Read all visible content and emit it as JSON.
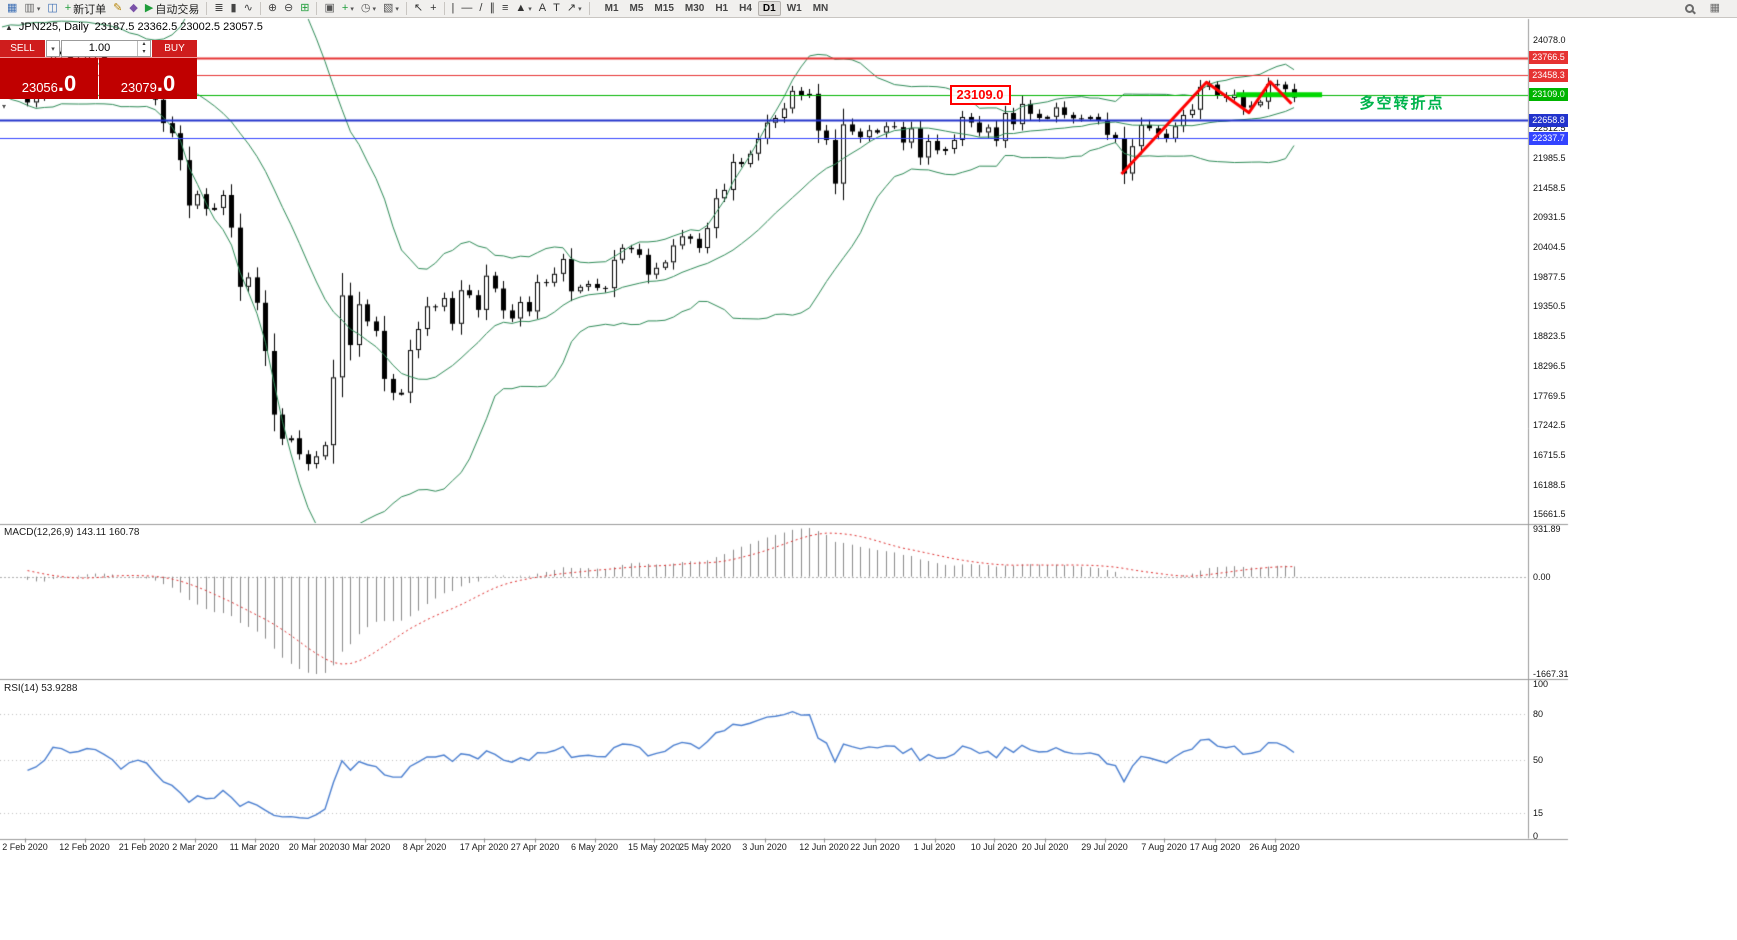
{
  "colors": {
    "toolbar_bg": "#f1f0ee",
    "bull": "#ffffff",
    "bear": "#000000",
    "candle_outline": "#000000",
    "bollinger": "#2E8B57",
    "macd_histogram": "#8c8c8c",
    "macd_signal": "#e03030",
    "rsi_line": "#4b7fd0",
    "zigzag": "#ff0000",
    "level_segment": "#00d800",
    "separator": "#9a9a9a"
  },
  "toolbar": {
    "items": [
      {
        "name": "new-chart-icon",
        "glyph": "▦",
        "color": "#3c6eb4"
      },
      {
        "name": "profiles-icon",
        "glyph": "▥",
        "color": "#6b6b6b",
        "dropdown": true
      },
      {
        "name": "chart-windows-icon",
        "glyph": "◫",
        "color": "#3c6eb4"
      },
      {
        "name": "new-order-button",
        "glyph": "+",
        "color": "#1f9d3a",
        "label": "新订单"
      },
      {
        "name": "metaeditor-icon",
        "glyph": "✎",
        "color": "#b8860b"
      },
      {
        "name": "script-icon",
        "glyph": "◆",
        "color": "#7a52a8"
      },
      {
        "name": "autotrading-button",
        "glyph": "▶",
        "color": "#1f9d3a",
        "label": "自动交易"
      },
      {
        "sep": true
      },
      {
        "name": "bar-chart-mode-icon",
        "glyph": "≣",
        "color": "#444444"
      },
      {
        "name": "candlestick-mode-icon",
        "glyph": "▮",
        "color": "#444444"
      },
      {
        "name": "line-chart-mode-icon",
        "glyph": "∿",
        "color": "#444444"
      },
      {
        "sep": true
      },
      {
        "name": "zoom-in-icon",
        "glyph": "⊕",
        "color": "#444444"
      },
      {
        "name": "zoom-out-icon",
        "glyph": "⊖",
        "color": "#444444"
      },
      {
        "name": "grid-icon",
        "glyph": "⊞",
        "color": "#1f9d3a"
      },
      {
        "sep": true
      },
      {
        "name": "tile-windows-icon",
        "glyph": "▣",
        "color": "#555555"
      },
      {
        "name": "indicators-icon",
        "glyph": "+",
        "color": "#1f9d3a",
        "dropdown": true
      },
      {
        "name": "periods-icon",
        "glyph": "◷",
        "color": "#555555",
        "dropdown": true
      },
      {
        "name": "templates-icon",
        "glyph": "▧",
        "color": "#555555",
        "dropdown": true
      },
      {
        "sep": true
      },
      {
        "name": "cursor-icon",
        "glyph": "↖",
        "color": "#333333"
      },
      {
        "name": "crosshair-icon",
        "glyph": "+",
        "color": "#333333"
      },
      {
        "sep": true
      },
      {
        "name": "vertical-line-icon",
        "glyph": "|",
        "color": "#333333"
      },
      {
        "name": "horizontal-line-icon",
        "glyph": "—",
        "color": "#333333"
      },
      {
        "name": "trendline-icon",
        "glyph": "/",
        "color": "#333333"
      },
      {
        "name": "channel-icon",
        "glyph": "∥",
        "color": "#333333"
      },
      {
        "name": "fibonacci-icon",
        "glyph": "≡",
        "color": "#333333"
      },
      {
        "name": "shapes-icon",
        "glyph": "▲",
        "color": "#333333",
        "dropdown": true
      },
      {
        "name": "text-icon",
        "glyph": "A",
        "color": "#333333"
      },
      {
        "name": "text-label-icon",
        "glyph": "T",
        "color": "#333333"
      },
      {
        "name": "arrow-tools-icon",
        "glyph": "↗",
        "color": "#333333",
        "dropdown": true
      },
      {
        "sep": true
      }
    ],
    "right_items": [
      {
        "name": "search-icon",
        "shape": "mag"
      },
      {
        "name": "panels-icon",
        "glyph": "▦",
        "color": "#6b6b6b"
      }
    ],
    "timeframes": [
      "M1",
      "M5",
      "M15",
      "M30",
      "H1",
      "H4",
      "D1",
      "W1",
      "MN"
    ],
    "active_timeframe": "D1"
  },
  "chart_header": {
    "marker": "▲",
    "symbol_title": "JPN225, Daily",
    "ohlc_text": "23187.5 23362.5 23002.5 23057.5"
  },
  "order_panel": {
    "sell_label": "SELL",
    "buy_label": "BUY",
    "volume": "1.00",
    "dropdown_glyph": "▾",
    "spin_up_glyph": "▴",
    "spin_down_glyph": "▾",
    "collapse_glyph": "▾",
    "sell_price_main": "23056",
    "sell_price_frac": ".0",
    "buy_price_main": "23079",
    "buy_price_frac": ".0"
  },
  "price_axis": {
    "plain_labels": [
      "24078.0",
      "22512.5",
      "21985.5",
      "21458.5",
      "20931.5",
      "20404.5",
      "19877.5",
      "19350.5",
      "18823.5",
      "18296.5",
      "17769.5",
      "17242.5",
      "16715.5",
      "16188.5",
      "15661.5"
    ],
    "tags": [
      {
        "text": "23766.5",
        "color": "#e63232"
      },
      {
        "text": "23458.3",
        "color": "#e63232"
      },
      {
        "text": "23109.0",
        "color": "#00b400"
      },
      {
        "text": "22658.8",
        "color": "#2233cc"
      },
      {
        "text": "22337.7",
        "color": "#3344ff"
      }
    ]
  },
  "hlines": [
    {
      "price": 23766.5,
      "color": "#e63232",
      "width": 2
    },
    {
      "price": 23458.3,
      "color": "#e63232",
      "width": 1
    },
    {
      "price": 23109.0,
      "color": "#00b400",
      "width": 1
    },
    {
      "price": 22658.8,
      "color": "#2233cc",
      "width": 2
    },
    {
      "price": 22337.7,
      "color": "#3344ff",
      "width": 1
    }
  ],
  "annotations": {
    "price_box": {
      "text": "23109.0",
      "bar": 109,
      "price": 23109.0
    },
    "note_cn": {
      "text": "多空转折点",
      "bar": 157,
      "price": 23000
    },
    "zigzag": {
      "bars": [
        129,
        139,
        144,
        146.5,
        149
      ],
      "prices": [
        21700,
        23330,
        22790,
        23340,
        22950
      ]
    },
    "level_segment": {
      "price": 23109.0,
      "bar_from": 142.5,
      "bar_to": 152.6
    }
  },
  "indicators": {
    "macd": {
      "label": "MACD(12,26,9) 143.11 160.78",
      "fast": 12,
      "slow": 26,
      "signal": 9,
      "current_macd": 143.11,
      "current_signal": 160.78,
      "axis_labels": [
        "931.89",
        "0.00",
        "-1667.31"
      ]
    },
    "rsi": {
      "label": "RSI(14) 53.9288",
      "period": 14,
      "current": 53.9288,
      "axis_labels": [
        "100",
        "80",
        "50",
        "15",
        "0"
      ],
      "levels": [
        80,
        50,
        15
      ]
    }
  },
  "x_axis": {
    "labels": [
      "2 Feb 2020",
      "12 Feb 2020",
      "21 Feb 2020",
      "2 Mar 2020",
      "11 Mar 2020",
      "20 Mar 2020",
      "30 Mar 2020",
      "8 Apr 2020",
      "17 Apr 2020",
      "27 Apr 2020",
      "6 May 2020",
      "15 May 2020",
      "25 May 2020",
      "3 Jun 2020",
      "12 Jun 2020",
      "22 Jun 2020",
      "1 Jul 2020",
      "10 Jul 2020",
      "20 Jul 2020",
      "29 Jul 2020",
      "7 Aug 2020",
      "17 Aug 2020",
      "26 Aug 2020"
    ],
    "bar_indices": [
      0,
      7,
      14,
      20,
      27,
      34,
      40,
      47,
      54,
      60,
      67,
      74,
      80,
      87,
      94,
      100,
      107,
      114,
      120,
      127,
      134,
      140,
      147
    ]
  },
  "chart_data": {
    "type": "candlestick",
    "symbol": "JPN225",
    "timeframe": "Daily",
    "last_ohlc": {
      "open": 23187.5,
      "high": 23362.5,
      "low": 23002.5,
      "close": 23057.5
    },
    "price_range": [
      15560,
      24400
    ],
    "bollinger": {
      "period": 20,
      "deviation": 2
    },
    "warmup_closes": [
      23320,
      23440,
      23205,
      23575,
      23204,
      23740,
      23851,
      23916,
      24025,
      23917,
      23933,
      24041,
      24084,
      23864,
      24031,
      23795,
      23827,
      23344,
      22977,
      23205
    ],
    "closes": [
      22972,
      23085,
      23320,
      23874,
      23828,
      23686,
      23740,
      23861,
      23828,
      23687,
      23523,
      23193,
      23401,
      23479,
      23387,
      23020,
      22605,
      22426,
      21948,
      21143,
      21344,
      21083,
      21100,
      21329,
      20750,
      19699,
      19867,
      19416,
      18560,
      17431,
      17002,
      17011,
      16727,
      16553,
      16690,
      16888,
      18092,
      19546,
      18665,
      19389,
      19085,
      18917,
      18065,
      17818,
      17820,
      18576,
      18950,
      19353,
      19346,
      19499,
      19043,
      19638,
      19550,
      19290,
      19897,
      19669,
      19280,
      19137,
      19429,
      19262,
      19783,
      19771,
      19930,
      20194,
      19619,
      19700,
      19750,
      19680,
      19675,
      20179,
      20391,
      20366,
      20267,
      19915,
      20037,
      20134,
      20433,
      20595,
      20552,
      20388,
      20741,
      21271,
      21419,
      21916,
      21878,
      22062,
      22326,
      22614,
      22696,
      22864,
      23178,
      23091,
      23125,
      22473,
      22305,
      21531,
      22582,
      22456,
      22355,
      22479,
      22437,
      22549,
      22534,
      22260,
      22512,
      21995,
      22288,
      22122,
      22146,
      22306,
      22714,
      22615,
      22439,
      22529,
      22291,
      22785,
      22587,
      22946,
      22770,
      22696,
      22717,
      22884,
      22751,
      22690,
      22680,
      22715,
      22657,
      22397,
      22339,
      21710,
      22195,
      22573,
      22514,
      22418,
      22330,
      22550,
      22750,
      22843,
      23249,
      23289,
      23096,
      23051,
      23110,
      22880,
      22920,
      22985,
      23296,
      23290,
      23208,
      23058
    ]
  }
}
